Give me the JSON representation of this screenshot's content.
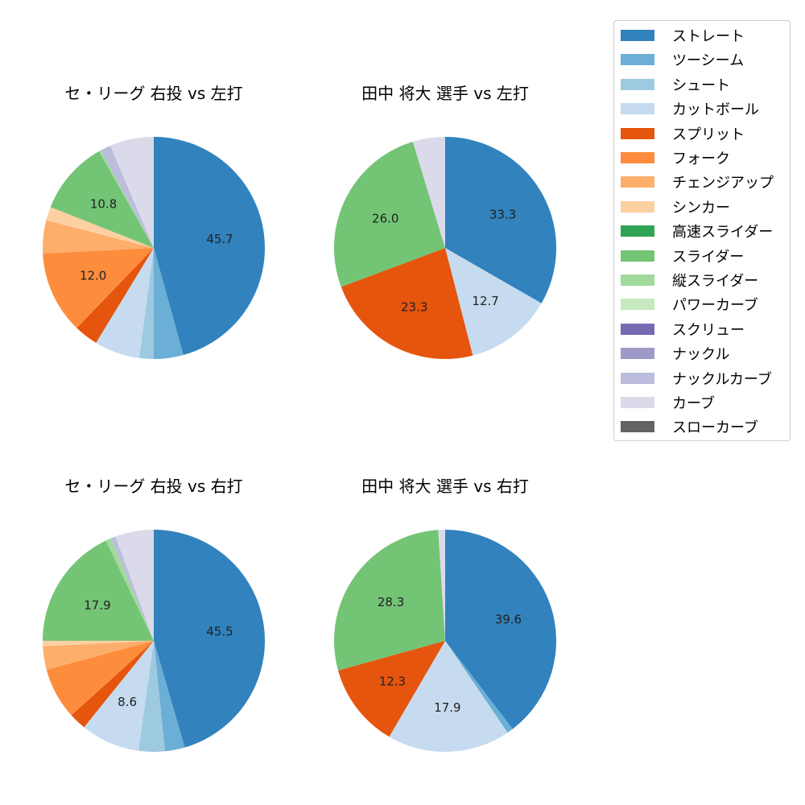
{
  "legend": {
    "items": [
      {
        "label": "ストレート",
        "color": "#3182bd"
      },
      {
        "label": "ツーシーム",
        "color": "#6baed6"
      },
      {
        "label": "シュート",
        "color": "#9ecae1"
      },
      {
        "label": "カットボール",
        "color": "#c6dbef"
      },
      {
        "label": "スプリット",
        "color": "#e6550d"
      },
      {
        "label": "フォーク",
        "color": "#fd8d3c"
      },
      {
        "label": "チェンジアップ",
        "color": "#fdae6b"
      },
      {
        "label": "シンカー",
        "color": "#fdd0a2"
      },
      {
        "label": "高速スライダー",
        "color": "#31a354"
      },
      {
        "label": "スライダー",
        "color": "#74c476"
      },
      {
        "label": "縦スライダー",
        "color": "#a1d99b"
      },
      {
        "label": "パワーカーブ",
        "color": "#c7e9c0"
      },
      {
        "label": "スクリュー",
        "color": "#756bb1"
      },
      {
        "label": "ナックル",
        "color": "#9e9ac8"
      },
      {
        "label": "ナックルカーブ",
        "color": "#bcbddc"
      },
      {
        "label": "カーブ",
        "color": "#dadaeb"
      },
      {
        "label": "スローカーブ",
        "color": "#636363"
      }
    ]
  },
  "chart_data": [
    {
      "type": "pie",
      "title": "セ・リーグ 右投 vs 左打",
      "position": "top-left",
      "start_angle": 90,
      "direction": "clockwise",
      "labels_shown_min_pct": 8,
      "slices": [
        {
          "label": "ストレート",
          "value": 45.7
        },
        {
          "label": "ツーシーム",
          "value": 4.3
        },
        {
          "label": "シュート",
          "value": 2.1
        },
        {
          "label": "カットボール",
          "value": 6.6
        },
        {
          "label": "スプリット",
          "value": 3.5
        },
        {
          "label": "フォーク",
          "value": 12.0
        },
        {
          "label": "チェンジアップ",
          "value": 4.8
        },
        {
          "label": "シンカー",
          "value": 2.0
        },
        {
          "label": "スライダー",
          "value": 10.8
        },
        {
          "label": "縦スライダー",
          "value": 0.3
        },
        {
          "label": "ナックルカーブ",
          "value": 1.5
        },
        {
          "label": "カーブ",
          "value": 6.4
        }
      ]
    },
    {
      "type": "pie",
      "title": "田中 将大 選手 vs 左打",
      "position": "top-right",
      "start_angle": 90,
      "direction": "clockwise",
      "labels_shown_min_pct": 8,
      "slices": [
        {
          "label": "ストレート",
          "value": 33.3
        },
        {
          "label": "カットボール",
          "value": 12.7
        },
        {
          "label": "スプリット",
          "value": 23.3
        },
        {
          "label": "スライダー",
          "value": 26.0
        },
        {
          "label": "カーブ",
          "value": 4.7
        }
      ]
    },
    {
      "type": "pie",
      "title": "セ・リーグ 右投 vs 右打",
      "position": "bottom-left",
      "start_angle": 90,
      "direction": "clockwise",
      "labels_shown_min_pct": 8,
      "slices": [
        {
          "label": "ストレート",
          "value": 45.5
        },
        {
          "label": "ツーシーム",
          "value": 2.9
        },
        {
          "label": "シュート",
          "value": 3.8
        },
        {
          "label": "カットボール",
          "value": 8.6
        },
        {
          "label": "スプリット",
          "value": 2.5
        },
        {
          "label": "フォーク",
          "value": 7.5
        },
        {
          "label": "チェンジアップ",
          "value": 3.4
        },
        {
          "label": "シンカー",
          "value": 0.8
        },
        {
          "label": "スライダー",
          "value": 17.9
        },
        {
          "label": "縦スライダー",
          "value": 0.8
        },
        {
          "label": "ナックルカーブ",
          "value": 0.7
        },
        {
          "label": "カーブ",
          "value": 5.6
        }
      ]
    },
    {
      "type": "pie",
      "title": "田中 将大 選手 vs 右打",
      "position": "bottom-right",
      "start_angle": 90,
      "direction": "clockwise",
      "labels_shown_min_pct": 8,
      "slices": [
        {
          "label": "ストレート",
          "value": 39.6
        },
        {
          "label": "ツーシーム",
          "value": 0.9
        },
        {
          "label": "カットボール",
          "value": 17.9
        },
        {
          "label": "スプリット",
          "value": 12.3
        },
        {
          "label": "スライダー",
          "value": 28.3
        },
        {
          "label": "カーブ",
          "value": 1.0
        }
      ]
    }
  ]
}
